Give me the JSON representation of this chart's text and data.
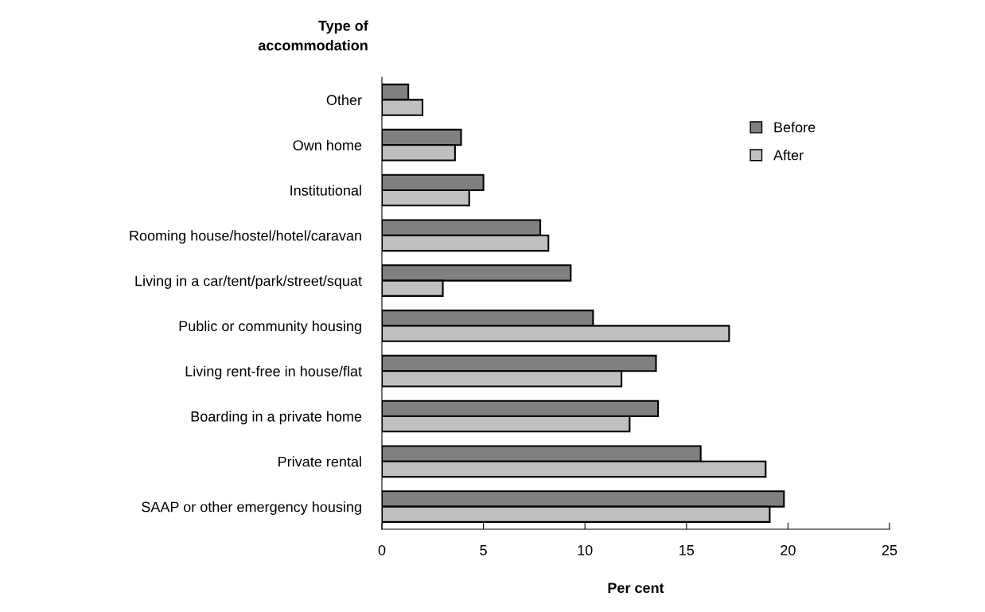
{
  "chart_data": {
    "type": "bar",
    "orientation": "horizontal",
    "ylabel": "Type of\naccommodation",
    "xlabel": "Per cent",
    "categories": [
      "Other",
      "Own home",
      "Institutional",
      "Rooming house/hostel/hotel/caravan",
      "Living in a car/tent/park/street/squat",
      "Public or community housing",
      "Living rent-free in house/flat",
      "Boarding in a private home",
      "Private rental",
      "SAAP or other emergency housing"
    ],
    "series": [
      {
        "name": "Before",
        "color": "#808080",
        "values": [
          1.3,
          3.9,
          5.0,
          7.8,
          9.3,
          10.4,
          13.5,
          13.6,
          15.7,
          19.8
        ]
      },
      {
        "name": "After",
        "color": "#c0c0c0",
        "values": [
          2.0,
          3.6,
          4.3,
          8.2,
          3.0,
          17.1,
          11.8,
          12.2,
          18.9,
          19.1
        ]
      }
    ],
    "xlim": [
      0,
      25
    ],
    "xticks": [
      0,
      5,
      10,
      15,
      20,
      25
    ],
    "grid": false,
    "legend": "top right"
  }
}
